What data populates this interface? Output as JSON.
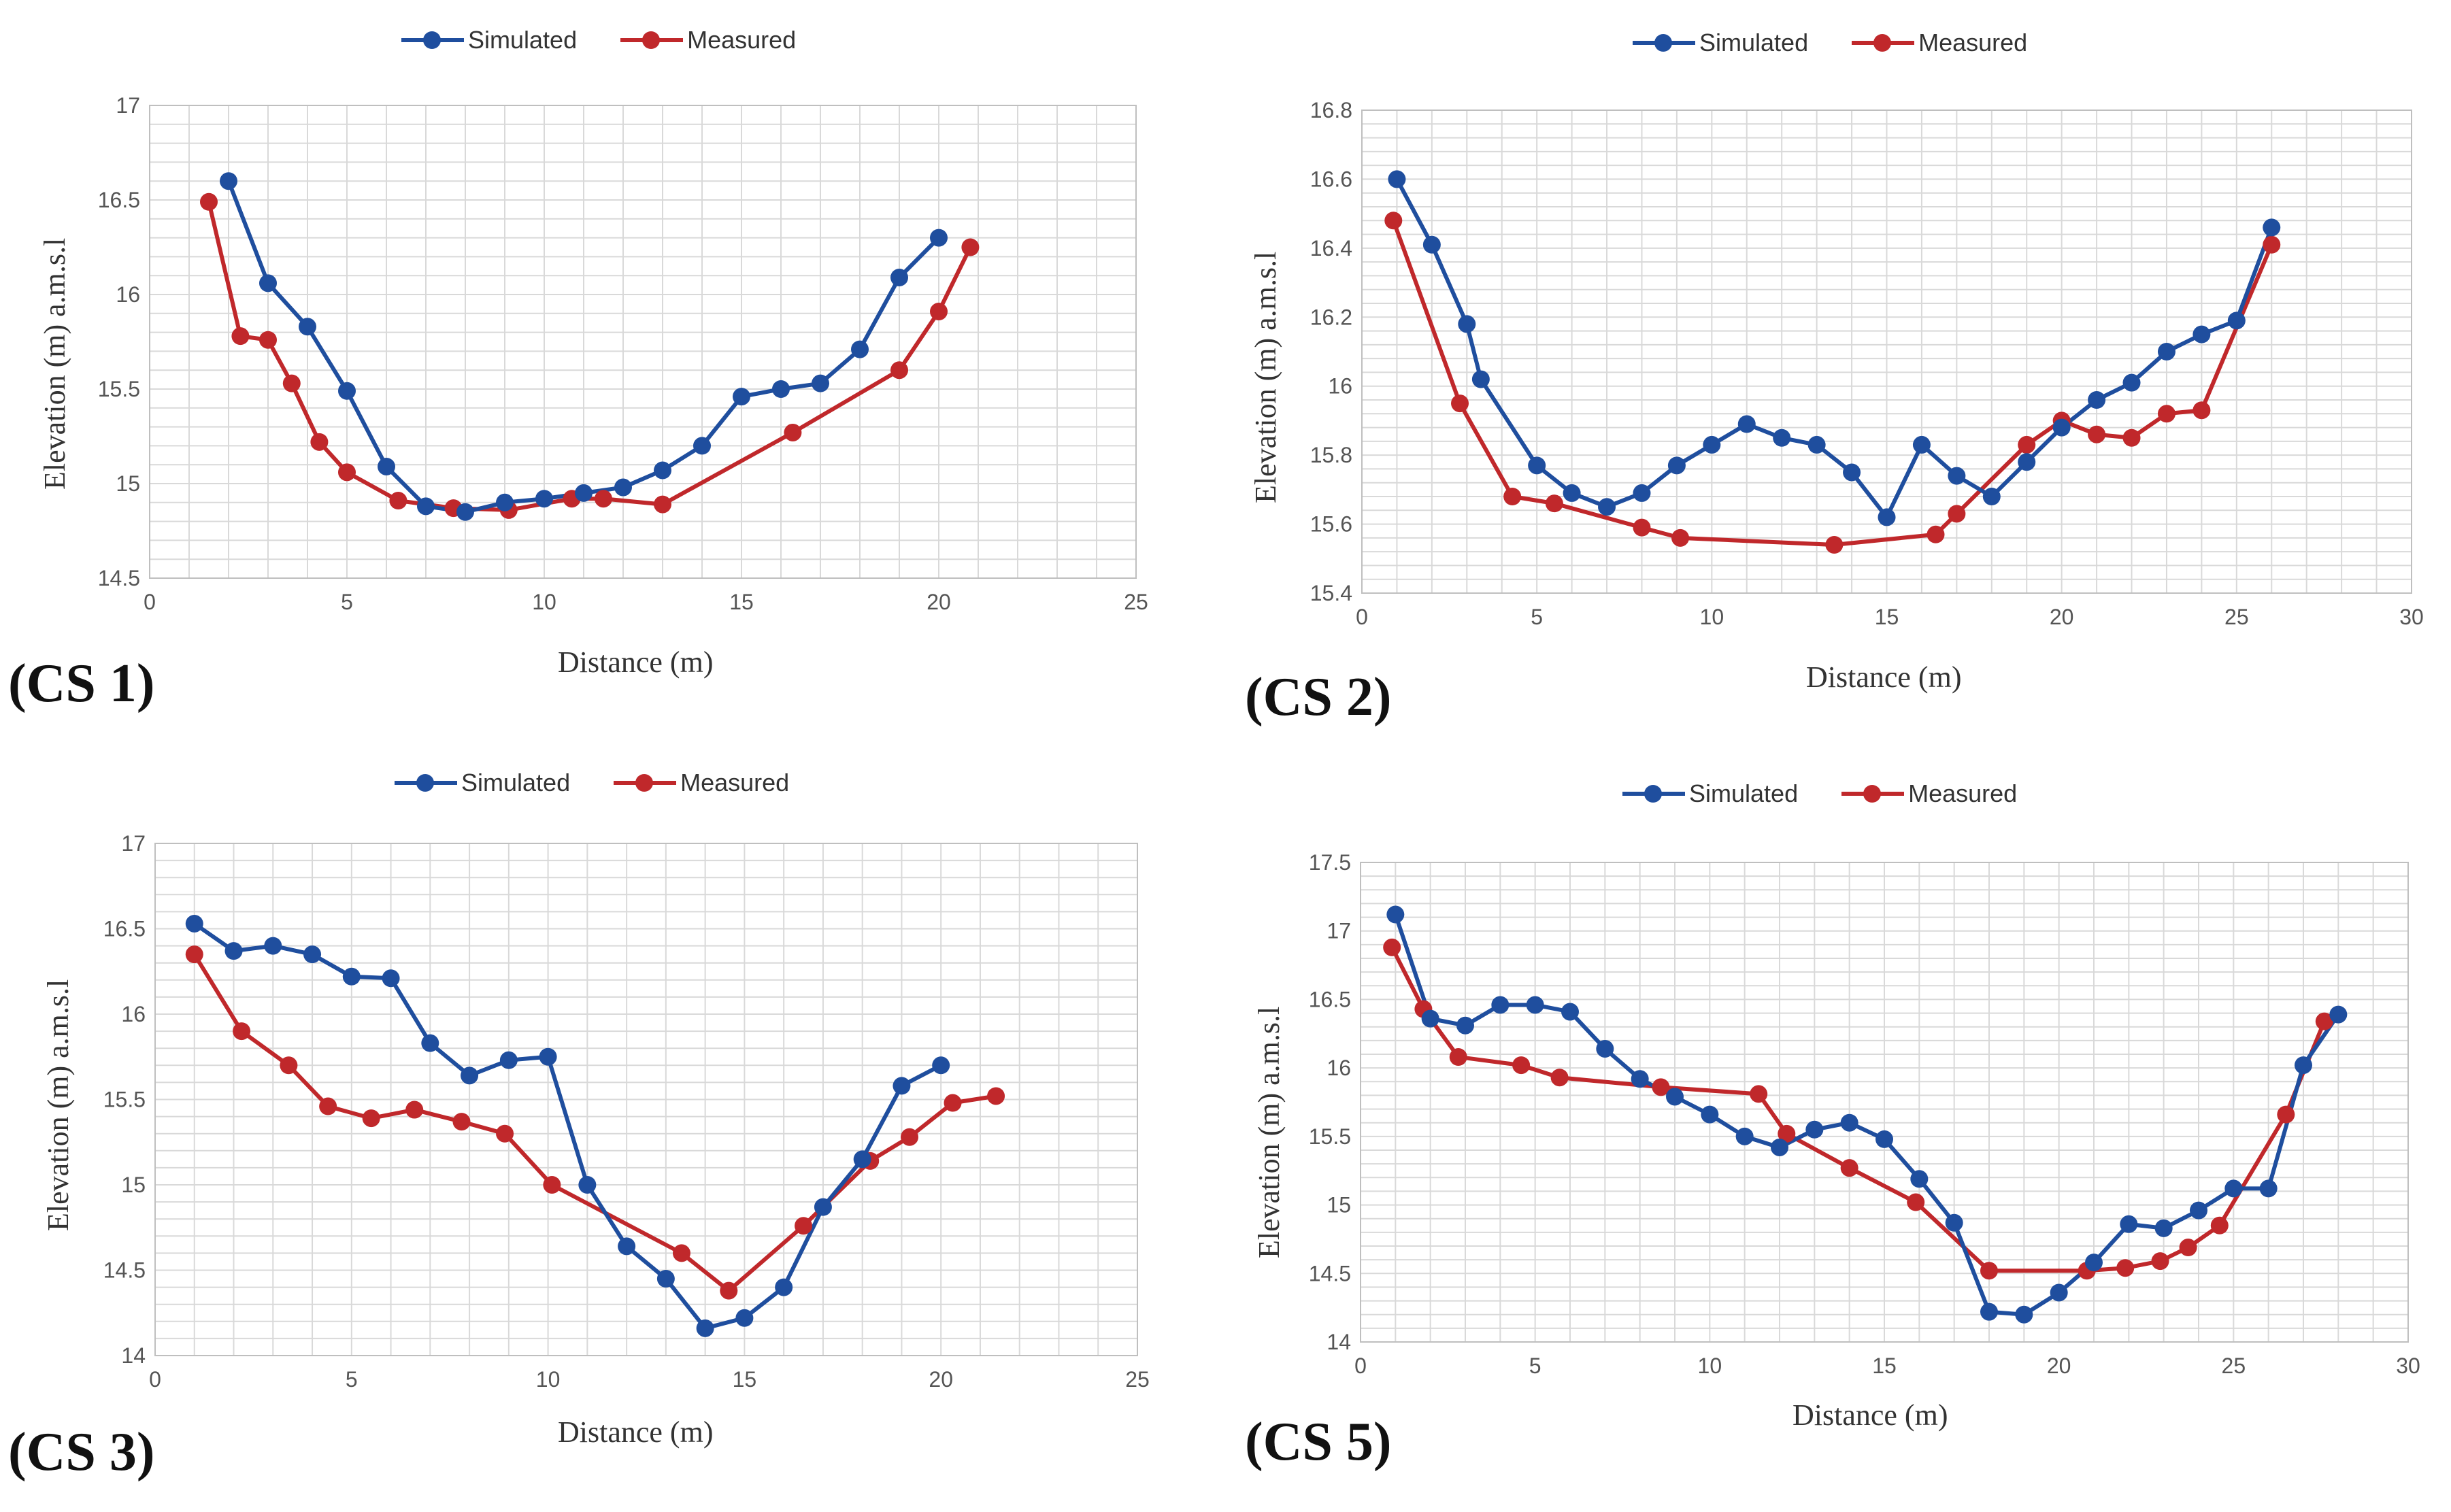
{
  "colors": {
    "simulated": "#1f4e9e",
    "measured": "#c0282b",
    "grid": "#d9d9d9"
  },
  "chart_data": [
    {
      "type": "line",
      "panel_label": "(CS 1)",
      "xlabel": "Distance (m)",
      "ylabel": "Elevation (m) a.m.s.l",
      "xlim": [
        0,
        25
      ],
      "ylim": [
        14.5,
        17
      ],
      "xticks": [
        0,
        5,
        10,
        15,
        20,
        25
      ],
      "xtick_labels": [
        "0",
        "5",
        "10",
        "15",
        "20",
        "25"
      ],
      "yticks": [
        14.5,
        15,
        15.5,
        16,
        16.5,
        17
      ],
      "ytick_labels": [
        "14.5",
        "15",
        "15.5",
        "16",
        "16.5",
        "17"
      ],
      "legend": [
        "Simulated",
        "Measured"
      ],
      "series": [
        {
          "name": "Simulated",
          "color": "#1f4e9e",
          "points": [
            [
              2,
              16.6
            ],
            [
              3,
              16.06
            ],
            [
              4,
              15.83
            ],
            [
              5,
              15.49
            ],
            [
              6,
              15.09
            ],
            [
              7,
              14.88
            ],
            [
              8,
              14.85
            ],
            [
              9,
              14.9
            ],
            [
              10,
              14.92
            ],
            [
              11,
              14.95
            ],
            [
              12,
              14.98
            ],
            [
              13,
              15.07
            ],
            [
              14,
              15.2
            ],
            [
              15,
              15.46
            ],
            [
              16,
              15.5
            ],
            [
              17,
              15.53
            ],
            [
              18,
              15.71
            ],
            [
              19,
              16.09
            ],
            [
              20,
              16.3
            ]
          ]
        },
        {
          "name": "Measured",
          "color": "#c0282b",
          "points": [
            [
              1.5,
              16.49
            ],
            [
              2.3,
              15.78
            ],
            [
              3,
              15.76
            ],
            [
              3.6,
              15.53
            ],
            [
              4.3,
              15.22
            ],
            [
              5,
              15.06
            ],
            [
              6.3,
              14.91
            ],
            [
              7.7,
              14.87
            ],
            [
              9.1,
              14.86
            ],
            [
              10.7,
              14.92
            ],
            [
              11.5,
              14.92
            ],
            [
              13,
              14.89
            ],
            [
              16.3,
              15.27
            ],
            [
              19,
              15.6
            ],
            [
              20,
              15.91
            ],
            [
              20.8,
              16.25
            ]
          ]
        }
      ]
    },
    {
      "type": "line",
      "panel_label": "(CS 2)",
      "xlabel": "Distance (m)",
      "ylabel": "Elevation (m) a.m.s.l",
      "xlim": [
        0,
        30
      ],
      "ylim": [
        15.4,
        16.8
      ],
      "xticks": [
        0,
        5,
        10,
        15,
        20,
        25,
        30
      ],
      "xtick_labels": [
        "0",
        "5",
        "10",
        "15",
        "20",
        "25",
        "30"
      ],
      "yticks": [
        15.4,
        15.6,
        15.8,
        16,
        16.2,
        16.4,
        16.6,
        16.8
      ],
      "ytick_labels": [
        "15.4",
        "15.6",
        "15.8",
        "16",
        "16.2",
        "16.4",
        "16.6",
        "16.8"
      ],
      "legend": [
        "Simulated",
        "Measured"
      ],
      "series": [
        {
          "name": "Simulated",
          "color": "#1f4e9e",
          "points": [
            [
              1,
              16.6
            ],
            [
              2,
              16.41
            ],
            [
              3,
              16.18
            ],
            [
              3.4,
              16.02
            ],
            [
              5,
              15.77
            ],
            [
              6,
              15.69
            ],
            [
              7,
              15.65
            ],
            [
              8,
              15.69
            ],
            [
              9,
              15.77
            ],
            [
              10,
              15.83
            ],
            [
              11,
              15.89
            ],
            [
              12,
              15.85
            ],
            [
              13,
              15.83
            ],
            [
              14,
              15.75
            ],
            [
              15,
              15.62
            ],
            [
              16,
              15.83
            ],
            [
              17,
              15.74
            ],
            [
              18,
              15.68
            ],
            [
              19,
              15.78
            ],
            [
              20,
              15.88
            ],
            [
              21,
              15.96
            ],
            [
              22,
              16.01
            ],
            [
              23,
              16.1
            ],
            [
              24,
              16.15
            ],
            [
              25,
              16.19
            ],
            [
              26,
              16.46
            ]
          ]
        },
        {
          "name": "Measured",
          "color": "#c0282b",
          "points": [
            [
              0.9,
              16.48
            ],
            [
              2.8,
              15.95
            ],
            [
              4.3,
              15.68
            ],
            [
              5.5,
              15.66
            ],
            [
              8,
              15.59
            ],
            [
              9.1,
              15.56
            ],
            [
              13.5,
              15.54
            ],
            [
              16.4,
              15.57
            ],
            [
              17,
              15.63
            ],
            [
              19,
              15.83
            ],
            [
              20,
              15.9
            ],
            [
              21,
              15.86
            ],
            [
              22,
              15.85
            ],
            [
              23,
              15.92
            ],
            [
              24,
              15.93
            ],
            [
              26,
              16.41
            ]
          ]
        }
      ]
    },
    {
      "type": "line",
      "panel_label": "(CS 3)",
      "xlabel": "Distance (m)",
      "ylabel": "Elevation (m) a.m.s.l",
      "xlim": [
        0,
        25
      ],
      "ylim": [
        14,
        17
      ],
      "xticks": [
        0,
        5,
        10,
        15,
        20,
        25
      ],
      "xtick_labels": [
        "0",
        "5",
        "10",
        "15",
        "20",
        "25"
      ],
      "yticks": [
        14,
        14.5,
        15,
        15.5,
        16,
        16.5,
        17
      ],
      "ytick_labels": [
        "14",
        "14.5",
        "15",
        "15.5",
        "16",
        "16.5",
        "17"
      ],
      "legend": [
        "Simulated",
        "Measured"
      ],
      "series": [
        {
          "name": "Simulated",
          "color": "#1f4e9e",
          "points": [
            [
              1,
              16.53
            ],
            [
              2,
              16.37
            ],
            [
              3,
              16.4
            ],
            [
              4,
              16.35
            ],
            [
              5,
              16.22
            ],
            [
              6,
              16.21
            ],
            [
              7,
              15.83
            ],
            [
              8,
              15.64
            ],
            [
              9,
              15.73
            ],
            [
              10,
              15.75
            ],
            [
              11,
              15.0
            ],
            [
              12,
              14.64
            ],
            [
              13,
              14.45
            ],
            [
              14,
              14.16
            ],
            [
              15,
              14.22
            ],
            [
              16,
              14.4
            ],
            [
              17,
              14.87
            ],
            [
              18,
              15.15
            ],
            [
              19,
              15.58
            ],
            [
              20,
              15.7
            ]
          ]
        },
        {
          "name": "Measured",
          "color": "#c0282b",
          "points": [
            [
              1,
              16.35
            ],
            [
              2.2,
              15.9
            ],
            [
              3.4,
              15.7
            ],
            [
              4.4,
              15.46
            ],
            [
              5.5,
              15.39
            ],
            [
              6.6,
              15.44
            ],
            [
              7.8,
              15.37
            ],
            [
              8.9,
              15.3
            ],
            [
              10.1,
              15.0
            ],
            [
              13.4,
              14.6
            ],
            [
              14.6,
              14.38
            ],
            [
              16.5,
              14.76
            ],
            [
              18.2,
              15.14
            ],
            [
              19.2,
              15.28
            ],
            [
              20.3,
              15.48
            ],
            [
              21.4,
              15.52
            ]
          ]
        }
      ]
    },
    {
      "type": "line",
      "panel_label": "(CS 5)",
      "xlabel": "Distance (m)",
      "ylabel": "Elevation (m) a.m.s.l",
      "xlim": [
        0,
        30
      ],
      "ylim": [
        14,
        17.5
      ],
      "xticks": [
        0,
        5,
        10,
        15,
        20,
        25,
        30
      ],
      "xtick_labels": [
        "0",
        "5",
        "10",
        "15",
        "20",
        "25",
        "30"
      ],
      "yticks": [
        14,
        14.5,
        15,
        15.5,
        16,
        16.5,
        17,
        17.5
      ],
      "ytick_labels": [
        "14",
        "14.5",
        "15",
        "15.5",
        "16",
        "16.5",
        "17",
        "17.5"
      ],
      "legend": [
        "Simulated",
        "Measured"
      ],
      "series": [
        {
          "name": "Simulated",
          "color": "#1f4e9e",
          "points": [
            [
              1,
              17.12
            ],
            [
              2,
              16.36
            ],
            [
              3,
              16.31
            ],
            [
              4,
              16.46
            ],
            [
              5,
              16.46
            ],
            [
              6,
              16.41
            ],
            [
              7,
              16.14
            ],
            [
              8,
              15.92
            ],
            [
              9,
              15.79
            ],
            [
              10,
              15.66
            ],
            [
              11,
              15.5
            ],
            [
              12,
              15.42
            ],
            [
              13,
              15.55
            ],
            [
              14,
              15.6
            ],
            [
              15,
              15.48
            ],
            [
              16,
              15.19
            ],
            [
              17,
              14.87
            ],
            [
              18,
              14.22
            ],
            [
              19,
              14.2
            ],
            [
              20,
              14.36
            ],
            [
              21,
              14.58
            ],
            [
              22,
              14.86
            ],
            [
              23,
              14.83
            ],
            [
              24,
              14.96
            ],
            [
              25,
              15.12
            ],
            [
              26,
              15.12
            ],
            [
              27,
              16.02
            ],
            [
              28,
              16.39
            ]
          ]
        },
        {
          "name": "Measured",
          "color": "#c0282b",
          "points": [
            [
              0.9,
              16.88
            ],
            [
              1.8,
              16.43
            ],
            [
              2.8,
              16.08
            ],
            [
              4.6,
              16.02
            ],
            [
              5.7,
              15.93
            ],
            [
              8.6,
              15.86
            ],
            [
              11.4,
              15.81
            ],
            [
              12.2,
              15.52
            ],
            [
              14,
              15.27
            ],
            [
              15.9,
              15.02
            ],
            [
              18,
              14.52
            ],
            [
              20.8,
              14.52
            ],
            [
              21.9,
              14.54
            ],
            [
              22.9,
              14.59
            ],
            [
              23.7,
              14.69
            ],
            [
              24.6,
              14.85
            ],
            [
              26.5,
              15.66
            ],
            [
              27.6,
              16.34
            ]
          ]
        }
      ]
    }
  ]
}
